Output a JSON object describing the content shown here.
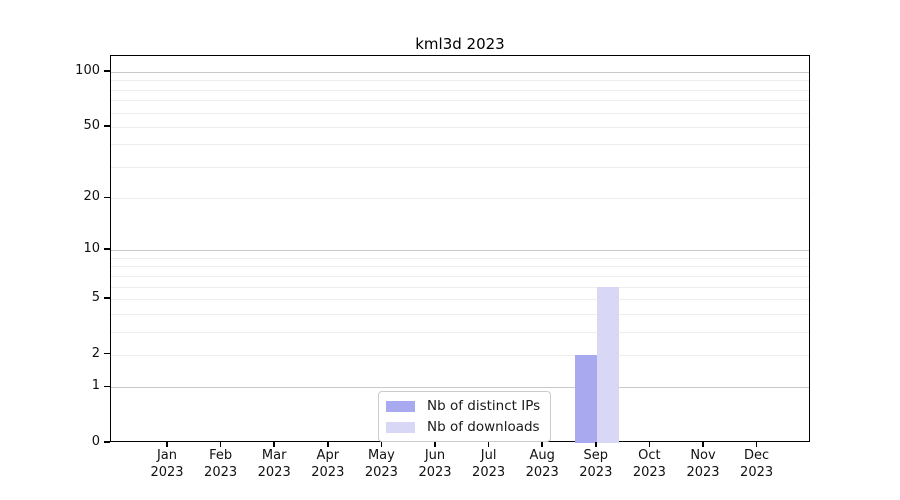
{
  "figure": {
    "title": "kml3d 2023",
    "background": "#ffffff"
  },
  "colors": {
    "grid_major": "#c9c9c9",
    "grid_minor": "#ededed",
    "axis": "#000000",
    "tick_text": "#111111",
    "legend_border": "#cbcbcb",
    "series_distinct_ips": "#a9a9ef",
    "series_downloads": "#d8d8f6"
  },
  "chart_data": {
    "type": "bar",
    "title": "kml3d 2023",
    "categories": [
      "Jan 2023",
      "Feb 2023",
      "Mar 2023",
      "Apr 2023",
      "May 2023",
      "Jun 2023",
      "Jul 2023",
      "Aug 2023",
      "Sep 2023",
      "Oct 2023",
      "Nov 2023",
      "Dec 2023"
    ],
    "series": [
      {
        "name": "Nb of distinct IPs",
        "color": "#a9a9ef",
        "values": [
          0,
          0,
          0,
          0,
          0,
          0,
          0,
          0,
          2,
          0,
          0,
          0
        ]
      },
      {
        "name": "Nb of downloads",
        "color": "#d8d8f6",
        "values": [
          0,
          0,
          0,
          0,
          0,
          0,
          0,
          0,
          6,
          0,
          0,
          0
        ]
      }
    ],
    "xlabel": "",
    "ylabel": "",
    "y_scale": "log1p",
    "ylim": [
      0,
      123
    ],
    "y_ticks": [
      0,
      1,
      2,
      5,
      10,
      20,
      50,
      100
    ],
    "y_major_gridlines": [
      1,
      10,
      100
    ],
    "y_minor_gridlines": [
      2,
      3,
      4,
      5,
      6,
      7,
      8,
      9,
      20,
      30,
      40,
      50,
      60,
      70,
      80,
      90
    ],
    "grid": "horizontal",
    "legend": {
      "position": "inside-bottom-center",
      "entries": [
        "Nb of distinct IPs",
        "Nb of downloads"
      ]
    }
  }
}
